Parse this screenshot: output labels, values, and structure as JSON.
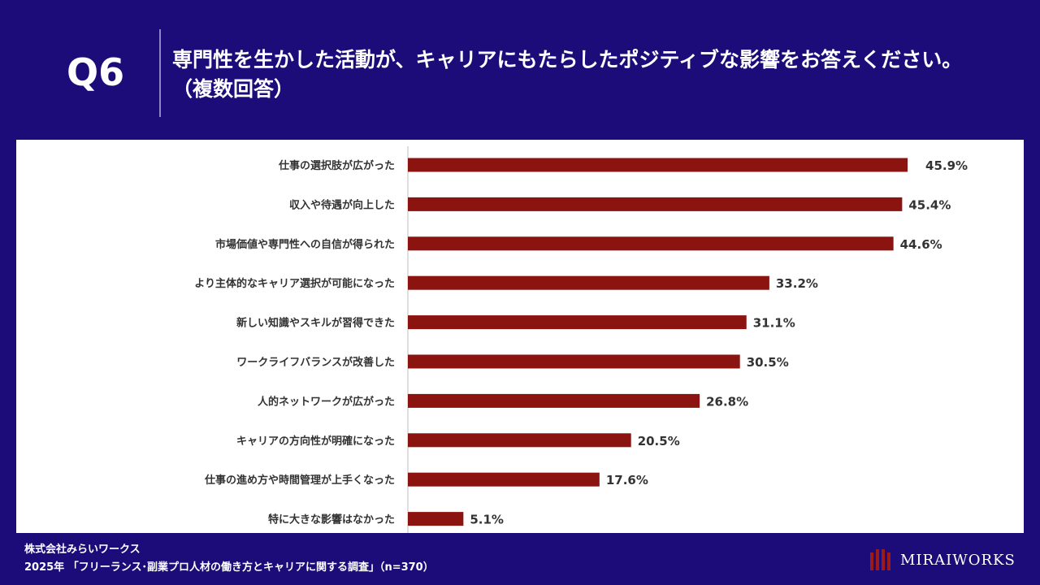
{
  "header": {
    "question_number": "Q6",
    "question_line1": "専門性を生かした活動が、キャリアにもたらしたポジティブな影響をお答えください。",
    "question_line2": "（複数回答）"
  },
  "chart_data": {
    "type": "bar",
    "orientation": "horizontal",
    "categories": [
      "仕事の選択肢が広がった",
      "収入や待遇が向上した",
      "市場価値や専門性への自信が得られた",
      "より主体的なキャリア選択が可能になった",
      "新しい知識やスキルが習得できた",
      "ワークライフバランスが改善した",
      "人的ネットワークが広がった",
      "キャリアの方向性が明確になった",
      "仕事の進め方や時間管理が上手くなった",
      "特に大きな影響はなかった"
    ],
    "values": [
      45.9,
      45.4,
      44.6,
      33.2,
      31.1,
      30.5,
      26.8,
      20.5,
      17.6,
      5.1
    ],
    "value_labels": [
      "45.9%",
      "45.4%",
      "44.6%",
      "33.2%",
      "31.1%",
      "30.5%",
      "26.8%",
      "20.5%",
      "17.6%",
      "5.1%"
    ],
    "unit": "%",
    "xlim": [
      0,
      50
    ],
    "grid": false,
    "bar_color": "#8b1410",
    "title": "",
    "xlabel": "",
    "ylabel": ""
  },
  "footer": {
    "company": "株式会社みらいワークス",
    "survey": "2025年 「フリーランス･副業プロ人材の働き方とキャリアに関する調査」（n=370）"
  },
  "logo": {
    "text": "MIRAIWORKS",
    "color": "#9b1b1b"
  }
}
